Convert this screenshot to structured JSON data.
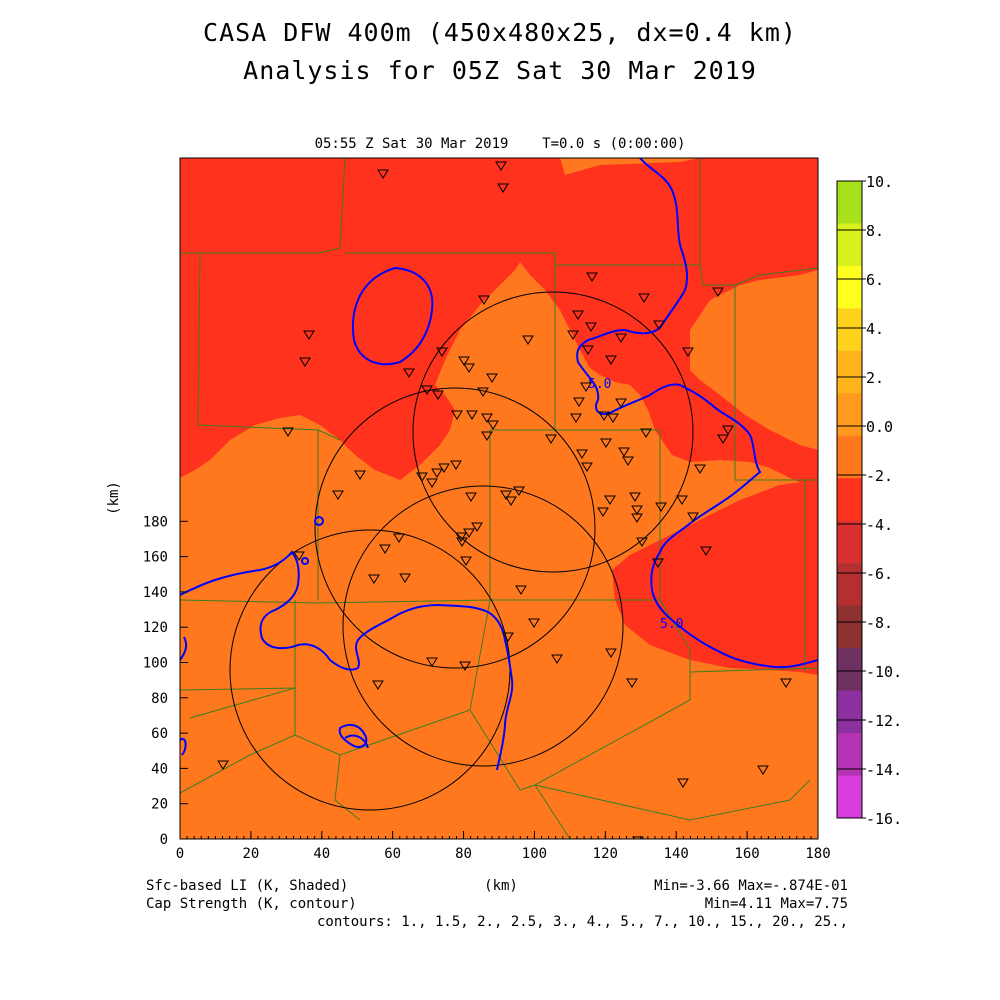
{
  "title_line1": "CASA DFW 400m (450x480x25, dx=0.4 km)",
  "title_line2": "Analysis for 05Z Sat 30 Mar 2019",
  "subtitle": "05:55 Z Sat 30 Mar 2019    T=0.0 s (0:00:00)",
  "axes": {
    "x_label": "(km)",
    "y_label": "(km)",
    "x_ticks": [
      "0",
      "20",
      "40",
      "60",
      "80",
      "100",
      "120",
      "140",
      "160",
      "180"
    ],
    "y_ticks": [
      "0",
      "20",
      "40",
      "60",
      "80",
      "100",
      "120",
      "140",
      "160",
      "180"
    ]
  },
  "footer": {
    "shaded_label": "Sfc-based LI (K, Shaded)",
    "contour_label": "Cap Strength (K, contour)",
    "shaded_range": "Min=-3.66 Max=-.874E-01",
    "contour_range": "Min=4.11 Max=7.75",
    "contours": "contours: 1., 1.5, 2., 2.5, 3., 4., 5., 7., 10., 15., 20., 25.,"
  },
  "contour_labels": [
    "5.0",
    "5.0"
  ],
  "colorbar": {
    "labels": [
      "10.",
      "8.",
      "6.",
      "4.",
      "2.",
      "0.0",
      "-2.",
      "-4.",
      "-6.",
      "-8.",
      "-10.",
      "-12.",
      "-14.",
      "-16."
    ],
    "colors": [
      "#a8e01c",
      "#d8f01c",
      "#ffff1e",
      "#ffd21e",
      "#ffb41e",
      "#ff9a1e",
      "#ff781e",
      "#ff321e",
      "#d83030",
      "#b43030",
      "#8c3030",
      "#6e3060",
      "#8c30a0",
      "#b432b4",
      "#d83cdc"
    ]
  },
  "map_colors": {
    "li_red": "#ff321e",
    "li_orange": "#ff781e",
    "cap_contour": "#0000ff",
    "county_lines": "#3c7d20",
    "radar_rings": "#000000"
  }
}
